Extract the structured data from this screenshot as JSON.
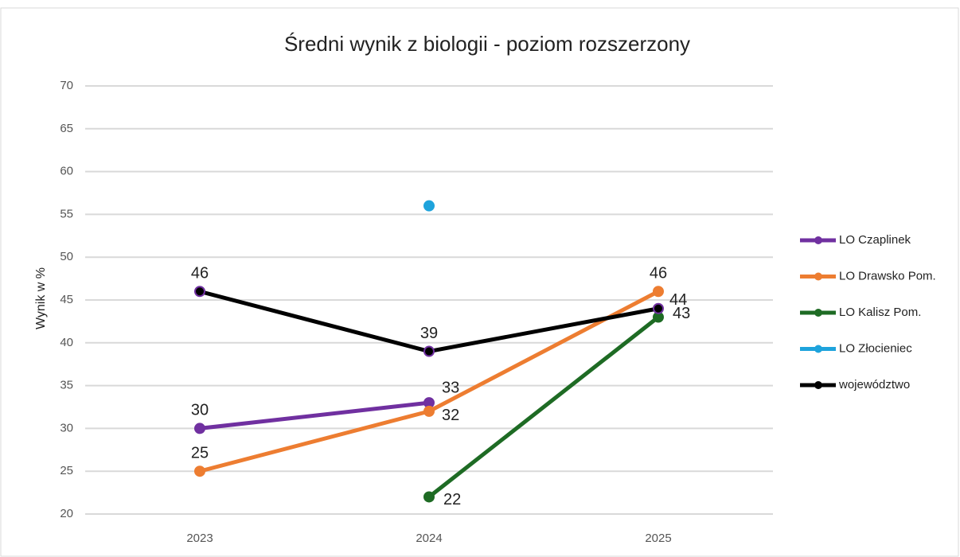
{
  "chart_data": {
    "type": "line",
    "title": "Średni wynik z biologii - poziom rozszerzony",
    "y_label": "Wynik w %",
    "categories": [
      "2023",
      "2024",
      "2025"
    ],
    "series": [
      {
        "name": "LO Czaplinek",
        "color": "#7030a0",
        "values": [
          30,
          33,
          null
        ],
        "data_labels": true
      },
      {
        "name": "LO Drawsko Pom.",
        "color": "#ed7d31",
        "values": [
          25,
          32,
          46
        ],
        "data_labels": true
      },
      {
        "name": "LO Kalisz Pom.",
        "color": "#1e6b24",
        "values": [
          null,
          22,
          43
        ],
        "data_labels": true
      },
      {
        "name": "LO Złocieniec",
        "color": "#1ea3dc",
        "values": [
          null,
          56,
          null
        ],
        "data_labels": false
      },
      {
        "name": "województwo",
        "color": "#000000",
        "values": [
          46,
          39,
          44
        ],
        "data_labels": true
      }
    ],
    "ylim": [
      20,
      70
    ],
    "yticks": [
      20,
      25,
      30,
      35,
      40,
      45,
      50,
      55,
      60,
      65,
      70
    ],
    "grid": true,
    "legend": "right"
  }
}
